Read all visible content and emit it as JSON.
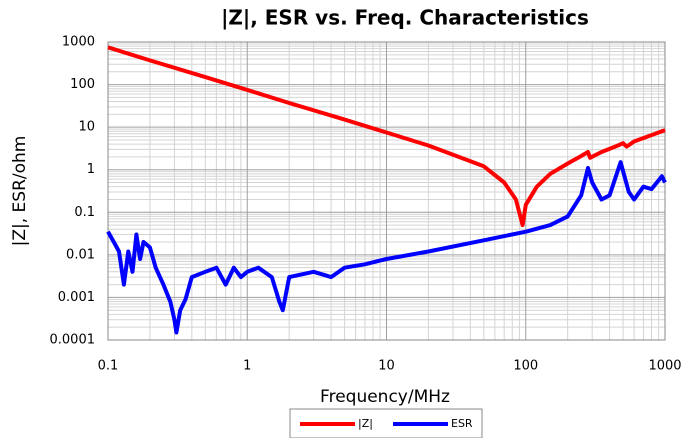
{
  "chart_data": {
    "type": "line",
    "title": "|Z|, ESR vs. Freq. Characteristics",
    "x_label": "Frequency/MHz",
    "y_label": "|Z|, ESR/ohm",
    "log_x": true,
    "log_y": true,
    "grid": true,
    "minor_grid": true,
    "legend": "bottom",
    "xlim": [
      0.1,
      1000
    ],
    "xticks": [
      0.1,
      1,
      10,
      100,
      1000
    ],
    "ylim": [
      0.0001,
      1000
    ],
    "yticks": [
      0.0001,
      0.001,
      0.01,
      0.1,
      1,
      10,
      100,
      1000
    ],
    "series": [
      {
        "name": "|Z|",
        "color": "#ff0000",
        "x": [
          0.1,
          0.2,
          0.5,
          1,
          2,
          5,
          10,
          20,
          50,
          70,
          85,
          95,
          100,
          120,
          150,
          200,
          250,
          280,
          290,
          350,
          450,
          500,
          530,
          600,
          800,
          1000
        ],
        "values": [
          750,
          370,
          150,
          75,
          37,
          15,
          7.5,
          3.7,
          1.2,
          0.5,
          0.2,
          0.05,
          0.15,
          0.4,
          0.8,
          1.4,
          2.1,
          2.6,
          1.9,
          2.6,
          3.6,
          4.2,
          3.5,
          4.6,
          6.5,
          8.5
        ]
      },
      {
        "name": "ESR",
        "color": "#0000ff",
        "x": [
          0.1,
          0.11,
          0.12,
          0.13,
          0.14,
          0.15,
          0.16,
          0.17,
          0.18,
          0.2,
          0.22,
          0.25,
          0.28,
          0.3,
          0.31,
          0.33,
          0.36,
          0.4,
          0.5,
          0.6,
          0.7,
          0.8,
          0.9,
          1,
          1.2,
          1.5,
          1.7,
          1.8,
          2,
          3,
          4,
          5,
          7,
          10,
          20,
          50,
          100,
          150,
          200,
          250,
          280,
          300,
          350,
          400,
          480,
          550,
          600,
          700,
          800,
          950,
          1000
        ],
        "values": [
          0.035,
          0.02,
          0.012,
          0.002,
          0.012,
          0.004,
          0.03,
          0.008,
          0.02,
          0.015,
          0.005,
          0.002,
          0.0008,
          0.0003,
          0.00015,
          0.0005,
          0.0009,
          0.003,
          0.004,
          0.005,
          0.002,
          0.005,
          0.003,
          0.004,
          0.005,
          0.003,
          0.0008,
          0.0005,
          0.003,
          0.004,
          0.003,
          0.005,
          0.006,
          0.008,
          0.012,
          0.022,
          0.035,
          0.05,
          0.08,
          0.25,
          1.1,
          0.5,
          0.2,
          0.25,
          1.5,
          0.3,
          0.2,
          0.4,
          0.35,
          0.7,
          0.5
        ]
      }
    ]
  }
}
